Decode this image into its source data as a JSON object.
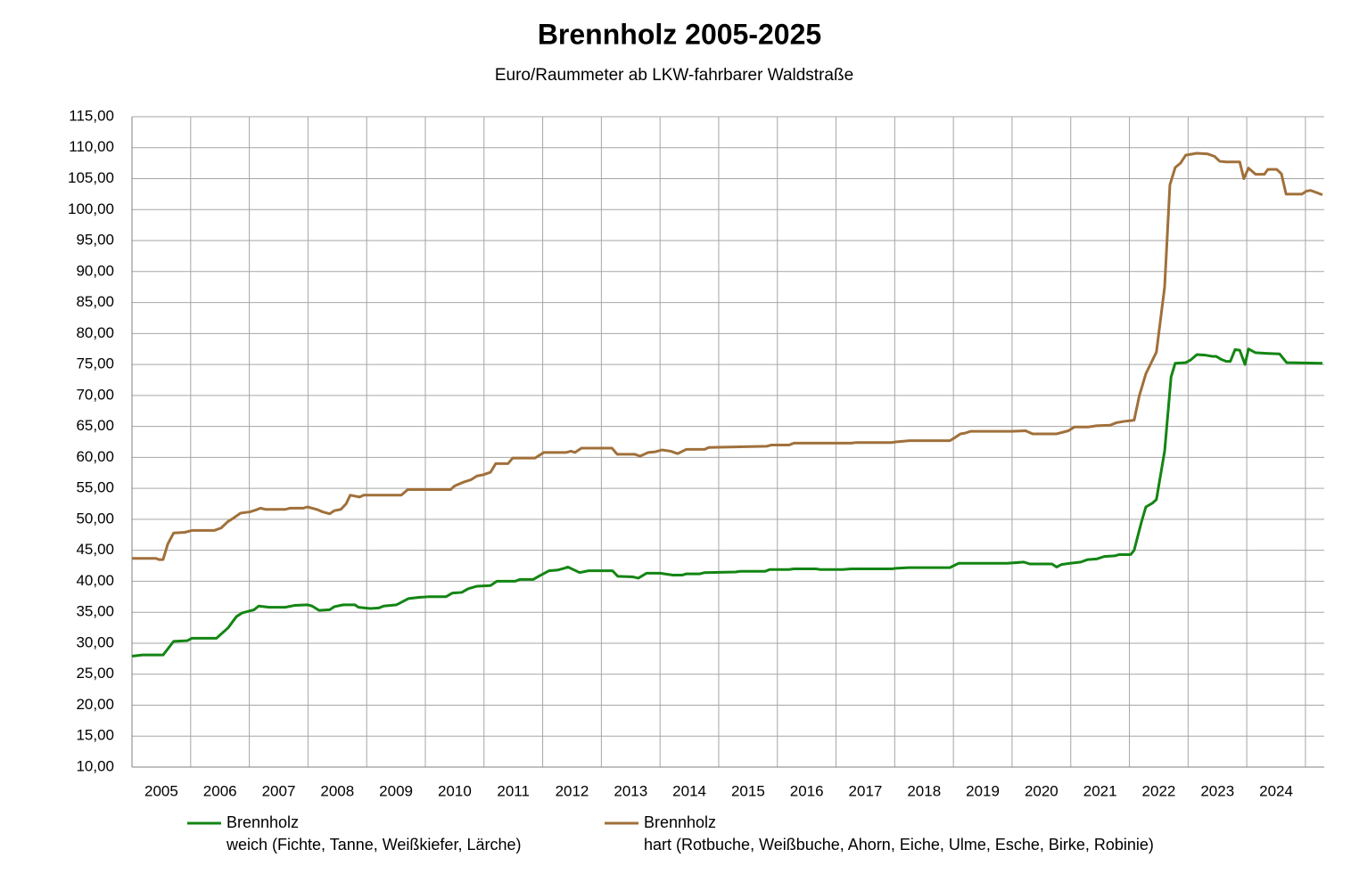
{
  "chart_data": {
    "type": "line",
    "title": "Brennholz 2005-2025",
    "subtitle": "Euro/Raummeter ab LKW-fahrbarer Waldstraße",
    "categories": [
      "2005",
      "2006",
      "2007",
      "2008",
      "2009",
      "2010",
      "2011",
      "2012",
      "2013",
      "2014",
      "2015",
      "2016",
      "2017",
      "2018",
      "2019",
      "2020",
      "2021",
      "2022",
      "2023",
      "2024"
    ],
    "xgrid": [
      2005,
      2006,
      2007,
      2008,
      2009,
      2010,
      2011,
      2012,
      2013,
      2014,
      2015,
      2016,
      2017,
      2018,
      2019,
      2020,
      2021,
      2022,
      2023,
      2024,
      2025
    ],
    "xlim": [
      2005,
      2025.32
    ],
    "ylim": [
      10,
      115
    ],
    "yticks": [
      {
        "value": 10,
        "label": "10,00"
      },
      {
        "value": 15,
        "label": "15,00"
      },
      {
        "value": 20,
        "label": "20,00"
      },
      {
        "value": 25,
        "label": "25,00"
      },
      {
        "value": 30,
        "label": "30,00"
      },
      {
        "value": 35,
        "label": "35,00"
      },
      {
        "value": 40,
        "label": "40,00"
      },
      {
        "value": 45,
        "label": "45,00"
      },
      {
        "value": 50,
        "label": "50,00"
      },
      {
        "value": 55,
        "label": "55,00"
      },
      {
        "value": 60,
        "label": "60,00"
      },
      {
        "value": 65,
        "label": "65,00"
      },
      {
        "value": 70,
        "label": "70,00"
      },
      {
        "value": 75,
        "label": "75,00"
      },
      {
        "value": 80,
        "label": "80,00"
      },
      {
        "value": 85,
        "label": "85,00"
      },
      {
        "value": 90,
        "label": "90,00"
      },
      {
        "value": 95,
        "label": "95,00"
      },
      {
        "value": 100,
        "label": "100,00"
      },
      {
        "value": 105,
        "label": "105,00"
      },
      {
        "value": 110,
        "label": "110,00"
      },
      {
        "value": 115,
        "label": "115,00"
      }
    ],
    "grid": true,
    "legend": "bottom",
    "series": [
      {
        "name": "Brennholz",
        "description": "weich (Fichte, Tanne, Weißkiefer, Lärche)",
        "color": "#138513",
        "x": [
          2005.0,
          2005.18,
          2005.53,
          2005.71,
          2005.94,
          2006.02,
          2006.44,
          2006.64,
          2006.78,
          2006.88,
          2007.08,
          2007.16,
          2007.34,
          2007.61,
          2007.77,
          2007.99,
          2008.07,
          2008.19,
          2008.37,
          2008.45,
          2008.6,
          2008.8,
          2008.86,
          2009.06,
          2009.21,
          2009.29,
          2009.51,
          2009.71,
          2009.89,
          2010.05,
          2010.35,
          2010.46,
          2010.62,
          2010.73,
          2010.88,
          2011.11,
          2011.22,
          2011.53,
          2011.61,
          2011.84,
          2011.95,
          2012.11,
          2012.25,
          2012.37,
          2012.43,
          2012.63,
          2012.78,
          2013.19,
          2013.28,
          2013.54,
          2013.63,
          2013.77,
          2014.0,
          2014.22,
          2014.38,
          2014.45,
          2014.68,
          2014.76,
          2015.29,
          2015.36,
          2015.79,
          2015.87,
          2016.2,
          2016.28,
          2016.66,
          2016.73,
          2017.11,
          2017.26,
          2017.95,
          2018.02,
          2018.25,
          2018.94,
          2019.09,
          2019.92,
          2020.2,
          2020.3,
          2020.68,
          2020.76,
          2020.84,
          2020.99,
          2021.17,
          2021.29,
          2021.44,
          2021.57,
          2021.75,
          2021.82,
          2022.02,
          2022.08,
          2022.2,
          2022.28,
          2022.39,
          2022.46,
          2022.6,
          2022.71,
          2022.78,
          2022.96,
          2023.04,
          2023.15,
          2023.3,
          2023.42,
          2023.48,
          2023.57,
          2023.65,
          2023.72,
          2023.8,
          2023.88,
          2023.97,
          2024.03,
          2024.15,
          2024.33,
          2024.56,
          2024.68,
          2025.29
        ],
        "values": [
          27.9,
          28.1,
          28.1,
          30.3,
          30.4,
          30.8,
          30.8,
          32.5,
          34.3,
          34.9,
          35.4,
          36.0,
          35.8,
          35.8,
          36.1,
          36.2,
          36.0,
          35.3,
          35.4,
          35.9,
          36.2,
          36.2,
          35.8,
          35.6,
          35.7,
          36.0,
          36.2,
          37.2,
          37.4,
          37.5,
          37.5,
          38.1,
          38.2,
          38.8,
          39.2,
          39.3,
          40.0,
          40.0,
          40.3,
          40.3,
          40.9,
          41.7,
          41.8,
          42.1,
          42.3,
          41.4,
          41.7,
          41.7,
          40.8,
          40.7,
          40.5,
          41.3,
          41.3,
          41.0,
          41.0,
          41.2,
          41.2,
          41.4,
          41.5,
          41.6,
          41.6,
          41.9,
          41.9,
          42.0,
          42.0,
          41.9,
          41.9,
          42.0,
          42.0,
          42.1,
          42.2,
          42.2,
          42.9,
          42.9,
          43.1,
          42.8,
          42.8,
          42.3,
          42.7,
          42.9,
          43.1,
          43.5,
          43.6,
          44.0,
          44.1,
          44.3,
          44.3,
          45.0,
          49.4,
          52.0,
          52.6,
          53.2,
          61.0,
          73.0,
          75.2,
          75.3,
          75.7,
          76.6,
          76.5,
          76.3,
          76.3,
          75.8,
          75.5,
          75.5,
          77.4,
          77.3,
          75.0,
          77.5,
          76.9,
          76.8,
          76.7,
          75.3,
          75.2
        ]
      },
      {
        "name": "Brennholz",
        "description": "hart (Rotbuche, Weißbuche, Ahorn, Eiche, Ulme, Esche, Birke, Robinie)",
        "color": "#a0703a",
        "x": [
          2005.0,
          2005.41,
          2005.46,
          2005.53,
          2005.61,
          2005.71,
          2005.9,
          2006.02,
          2006.4,
          2006.52,
          2006.63,
          2006.73,
          2006.85,
          2007.01,
          2007.11,
          2007.19,
          2007.28,
          2007.61,
          2007.69,
          2007.92,
          2007.99,
          2008.15,
          2008.25,
          2008.37,
          2008.45,
          2008.56,
          2008.65,
          2008.72,
          2008.88,
          2008.95,
          2009.59,
          2009.7,
          2010.43,
          2010.5,
          2010.65,
          2010.78,
          2010.88,
          2010.99,
          2011.11,
          2011.2,
          2011.41,
          2011.49,
          2011.87,
          2012.02,
          2012.4,
          2012.48,
          2012.55,
          2012.66,
          2013.18,
          2013.27,
          2013.57,
          2013.66,
          2013.8,
          2013.92,
          2014.03,
          2014.18,
          2014.3,
          2014.45,
          2014.76,
          2014.83,
          2015.82,
          2015.9,
          2016.2,
          2016.28,
          2017.26,
          2017.34,
          2017.95,
          2018.02,
          2018.25,
          2018.94,
          2019.01,
          2019.12,
          2019.19,
          2019.29,
          2020.0,
          2020.23,
          2020.35,
          2020.76,
          2020.96,
          2021.06,
          2021.29,
          2021.44,
          2021.67,
          2021.78,
          2021.9,
          2022.08,
          2022.17,
          2022.28,
          2022.46,
          2022.6,
          2022.69,
          2022.78,
          2022.87,
          2022.96,
          2023.15,
          2023.33,
          2023.45,
          2023.54,
          2023.65,
          2023.88,
          2023.95,
          2024.03,
          2024.15,
          2024.3,
          2024.36,
          2024.51,
          2024.59,
          2024.67,
          2024.94,
          2025.02,
          2025.09,
          2025.29
        ],
        "values": [
          43.7,
          43.7,
          43.5,
          43.5,
          46.0,
          47.8,
          47.9,
          48.2,
          48.2,
          48.6,
          49.6,
          50.2,
          51.0,
          51.2,
          51.5,
          51.8,
          51.6,
          51.6,
          51.8,
          51.8,
          52.0,
          51.6,
          51.2,
          50.9,
          51.4,
          51.6,
          52.5,
          53.9,
          53.6,
          53.9,
          53.9,
          54.8,
          54.8,
          55.4,
          56.0,
          56.4,
          57.0,
          57.2,
          57.6,
          59.0,
          59.0,
          59.9,
          59.9,
          60.8,
          60.8,
          61.0,
          60.8,
          61.5,
          61.5,
          60.5,
          60.5,
          60.2,
          60.8,
          60.9,
          61.2,
          61.0,
          60.6,
          61.3,
          61.3,
          61.6,
          61.8,
          62.0,
          62.0,
          62.3,
          62.3,
          62.4,
          62.4,
          62.5,
          62.7,
          62.7,
          63.1,
          63.8,
          63.9,
          64.2,
          64.2,
          64.3,
          63.8,
          63.8,
          64.3,
          64.9,
          64.9,
          65.1,
          65.2,
          65.6,
          65.8,
          66.0,
          70.0,
          73.5,
          77.0,
          87.5,
          104.0,
          106.8,
          107.5,
          108.8,
          109.1,
          109.0,
          108.6,
          107.8,
          107.7,
          107.7,
          105.0,
          106.7,
          105.7,
          105.7,
          106.5,
          106.5,
          105.8,
          102.5,
          102.5,
          103.0,
          103.1,
          102.4
        ]
      }
    ]
  }
}
